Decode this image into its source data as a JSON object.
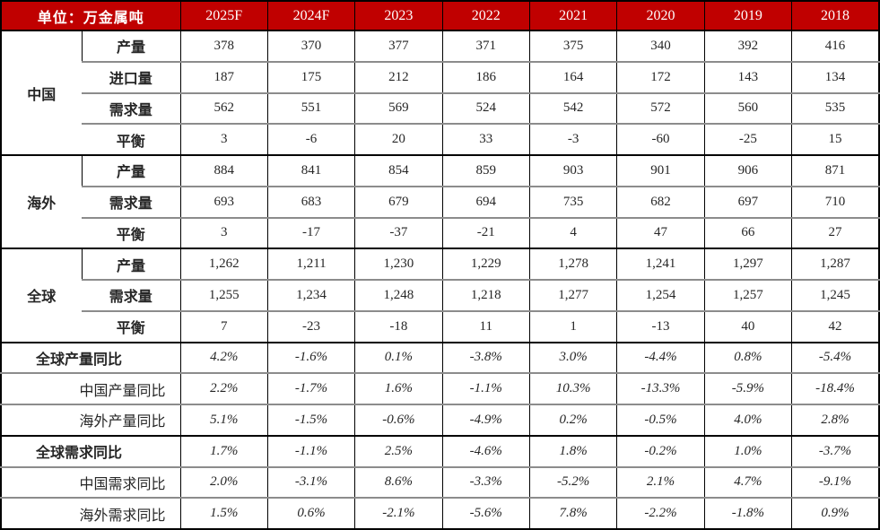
{
  "chart_data": {
    "type": "table",
    "unit_label": "单位：万金属吨",
    "columns": [
      "2025F",
      "2024F",
      "2023",
      "2022",
      "2021",
      "2020",
      "2019",
      "2018"
    ],
    "sections": [
      {
        "group": "中国",
        "rows": [
          {
            "metric": "产量",
            "values": [
              "378",
              "370",
              "377",
              "371",
              "375",
              "340",
              "392",
              "416"
            ]
          },
          {
            "metric": "进口量",
            "values": [
              "187",
              "175",
              "212",
              "186",
              "164",
              "172",
              "143",
              "134"
            ]
          },
          {
            "metric": "需求量",
            "values": [
              "562",
              "551",
              "569",
              "524",
              "542",
              "572",
              "560",
              "535"
            ]
          },
          {
            "metric": "平衡",
            "values": [
              "3",
              "-6",
              "20",
              "33",
              "-3",
              "-60",
              "-25",
              "15"
            ]
          }
        ]
      },
      {
        "group": "海外",
        "rows": [
          {
            "metric": "产量",
            "values": [
              "884",
              "841",
              "854",
              "859",
              "903",
              "901",
              "906",
              "871"
            ]
          },
          {
            "metric": "需求量",
            "values": [
              "693",
              "683",
              "679",
              "694",
              "735",
              "682",
              "697",
              "710"
            ]
          },
          {
            "metric": "平衡",
            "values": [
              "3",
              "-17",
              "-37",
              "-21",
              "4",
              "47",
              "66",
              "27"
            ]
          }
        ]
      },
      {
        "group": "全球",
        "rows": [
          {
            "metric": "产量",
            "values": [
              "1,262",
              "1,211",
              "1,230",
              "1,229",
              "1,278",
              "1,241",
              "1,297",
              "1,287"
            ]
          },
          {
            "metric": "需求量",
            "values": [
              "1,255",
              "1,234",
              "1,248",
              "1,218",
              "1,277",
              "1,254",
              "1,257",
              "1,245"
            ]
          },
          {
            "metric": "平衡",
            "values": [
              "7",
              "-23",
              "-18",
              "11",
              "1",
              "-13",
              "40",
              "42"
            ]
          }
        ]
      }
    ],
    "summary_sections": [
      [
        {
          "label": "全球产量同比",
          "bold": true,
          "values": [
            "4.2%",
            "-1.6%",
            "0.1%",
            "-3.8%",
            "3.0%",
            "-4.4%",
            "0.8%",
            "-5.4%"
          ]
        },
        {
          "label": "中国产量同比",
          "bold": false,
          "values": [
            "2.2%",
            "-1.7%",
            "1.6%",
            "-1.1%",
            "10.3%",
            "-13.3%",
            "-5.9%",
            "-18.4%"
          ]
        },
        {
          "label": "海外产量同比",
          "bold": false,
          "values": [
            "5.1%",
            "-1.5%",
            "-0.6%",
            "-4.9%",
            "0.2%",
            "-0.5%",
            "4.0%",
            "2.8%"
          ]
        }
      ],
      [
        {
          "label": "全球需求同比",
          "bold": true,
          "values": [
            "1.7%",
            "-1.1%",
            "2.5%",
            "-4.6%",
            "1.8%",
            "-0.2%",
            "1.0%",
            "-3.7%"
          ]
        },
        {
          "label": "中国需求同比",
          "bold": false,
          "values": [
            "2.0%",
            "-3.1%",
            "8.6%",
            "-3.3%",
            "-5.2%",
            "2.1%",
            "4.7%",
            "-9.1%"
          ]
        },
        {
          "label": "海外需求同比",
          "bold": false,
          "values": [
            "1.5%",
            "0.6%",
            "-2.1%",
            "-5.6%",
            "7.8%",
            "-2.2%",
            "-1.8%",
            "0.9%"
          ]
        }
      ]
    ],
    "group_semantic_names": [
      "china",
      "overseas",
      "global"
    ]
  },
  "colors": {
    "header_bg": "#C00000",
    "header_text": "#FFFFFF",
    "grid_gray": "#8C8C8C",
    "grid_black": "#000000",
    "text": "#262626"
  }
}
